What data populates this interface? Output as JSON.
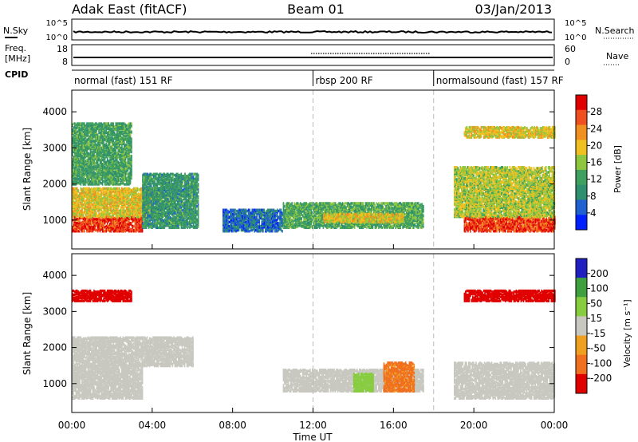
{
  "header": {
    "station": "Adak East (fitACF)",
    "beam": "Beam 01",
    "date": "03/Jan/2013"
  },
  "strip_labels": {
    "nsky": "N.Sky",
    "nsearch": "N.Search",
    "nave": "Nave",
    "cpid": "CPID",
    "freq_line1": "Freq.",
    "freq_line2": "[MHz]",
    "noise_ticks_left": [
      "10^5",
      "10^0"
    ],
    "noise_ticks_right": [
      "10^5",
      "10^0"
    ],
    "freq_ticks_left": [
      "18",
      "8"
    ],
    "freq_ticks_right": [
      "60",
      "0"
    ]
  },
  "modes": [
    {
      "label": "normal (fast) 151 RF",
      "start": "00:00",
      "end": "12:00"
    },
    {
      "label": "rbsp 200 RF",
      "start": "12:00",
      "end": "18:00"
    },
    {
      "label": "normalsound (fast) 157 RF",
      "start": "18:00",
      "end": "24:00"
    }
  ],
  "xaxis": {
    "label": "Time UT",
    "ticks": [
      "00:00",
      "04:00",
      "08:00",
      "12:00",
      "16:00",
      "20:00",
      "00:00"
    ]
  },
  "colors": {
    "power": [
      "#0020ff",
      "#2060d0",
      "#2f8f6f",
      "#3fa060",
      "#8ec640",
      "#f0c020",
      "#f09020",
      "#f05020",
      "#e00000"
    ],
    "velocity": [
      "#2020c0",
      "#3fa040",
      "#88cc40",
      "#c8c8c0",
      "#f0a020",
      "#f07020",
      "#e00000"
    ]
  },
  "chart_data": [
    {
      "type": "heatmap",
      "name": "power",
      "ylabel": "Slant Range [km]",
      "yticks": [
        "1000",
        "2000",
        "3000",
        "4000"
      ],
      "ylim": [
        200,
        4600
      ],
      "xlim": [
        0,
        24
      ],
      "colorbar": {
        "label": "Power [dB]",
        "ticks": [
          "4",
          "8",
          "12",
          "16",
          "20",
          "24",
          "28"
        ],
        "range": [
          0,
          30
        ]
      },
      "regions": [
        {
          "t0": 0.0,
          "t1": 3.5,
          "r0": 700,
          "r1": 1100,
          "value": 26
        },
        {
          "t0": 0.0,
          "t1": 4.5,
          "r0": 1100,
          "r1": 1900,
          "value": 18
        },
        {
          "t0": 0.0,
          "t1": 3.0,
          "r0": 2000,
          "r1": 3700,
          "value": 11
        },
        {
          "t0": 3.5,
          "t1": 6.3,
          "r0": 800,
          "r1": 2300,
          "value": 10
        },
        {
          "t0": 7.5,
          "t1": 10.5,
          "r0": 700,
          "r1": 1300,
          "value": 6
        },
        {
          "t0": 10.5,
          "t1": 17.5,
          "r0": 800,
          "r1": 1500,
          "value": 12
        },
        {
          "t0": 12.5,
          "t1": 16.5,
          "r0": 950,
          "r1": 1200,
          "value": 18
        },
        {
          "t0": 19.5,
          "t1": 24.0,
          "r0": 700,
          "r1": 1100,
          "value": 26
        },
        {
          "t0": 19.0,
          "t1": 24.0,
          "r0": 1100,
          "r1": 2500,
          "value": 16
        },
        {
          "t0": 19.5,
          "t1": 24.0,
          "r0": 3300,
          "r1": 3600,
          "value": 18
        }
      ]
    },
    {
      "type": "heatmap",
      "name": "velocity",
      "ylabel": "Slant Range [km]",
      "yticks": [
        "1000",
        "2000",
        "3000",
        "4000"
      ],
      "ylim": [
        200,
        4600
      ],
      "xlim": [
        0,
        24
      ],
      "colorbar": {
        "label": "Velocity [m s⁻¹]",
        "ticks": [
          "200",
          "100",
          "50",
          "15",
          "-15",
          "-50",
          "-100",
          "-200"
        ],
        "range": [
          -250,
          250
        ]
      },
      "regions": [
        {
          "t0": 0.0,
          "t1": 3.5,
          "r0": 600,
          "r1": 1500,
          "value": 0
        },
        {
          "t0": 0.0,
          "t1": 6.0,
          "r0": 1500,
          "r1": 2300,
          "value": 0
        },
        {
          "t0": 0.0,
          "t1": 3.0,
          "r0": 3300,
          "r1": 3600,
          "value": -150
        },
        {
          "t0": 10.5,
          "t1": 17.5,
          "r0": 800,
          "r1": 1400,
          "value": 0
        },
        {
          "t0": 14.0,
          "t1": 15.0,
          "r0": 800,
          "r1": 1300,
          "value": 30
        },
        {
          "t0": 15.5,
          "t1": 17.0,
          "r0": 800,
          "r1": 1600,
          "value": -60
        },
        {
          "t0": 19.0,
          "t1": 24.0,
          "r0": 600,
          "r1": 1600,
          "value": 0
        },
        {
          "t0": 19.5,
          "t1": 24.0,
          "r0": 3300,
          "r1": 3600,
          "value": -150
        }
      ]
    }
  ]
}
